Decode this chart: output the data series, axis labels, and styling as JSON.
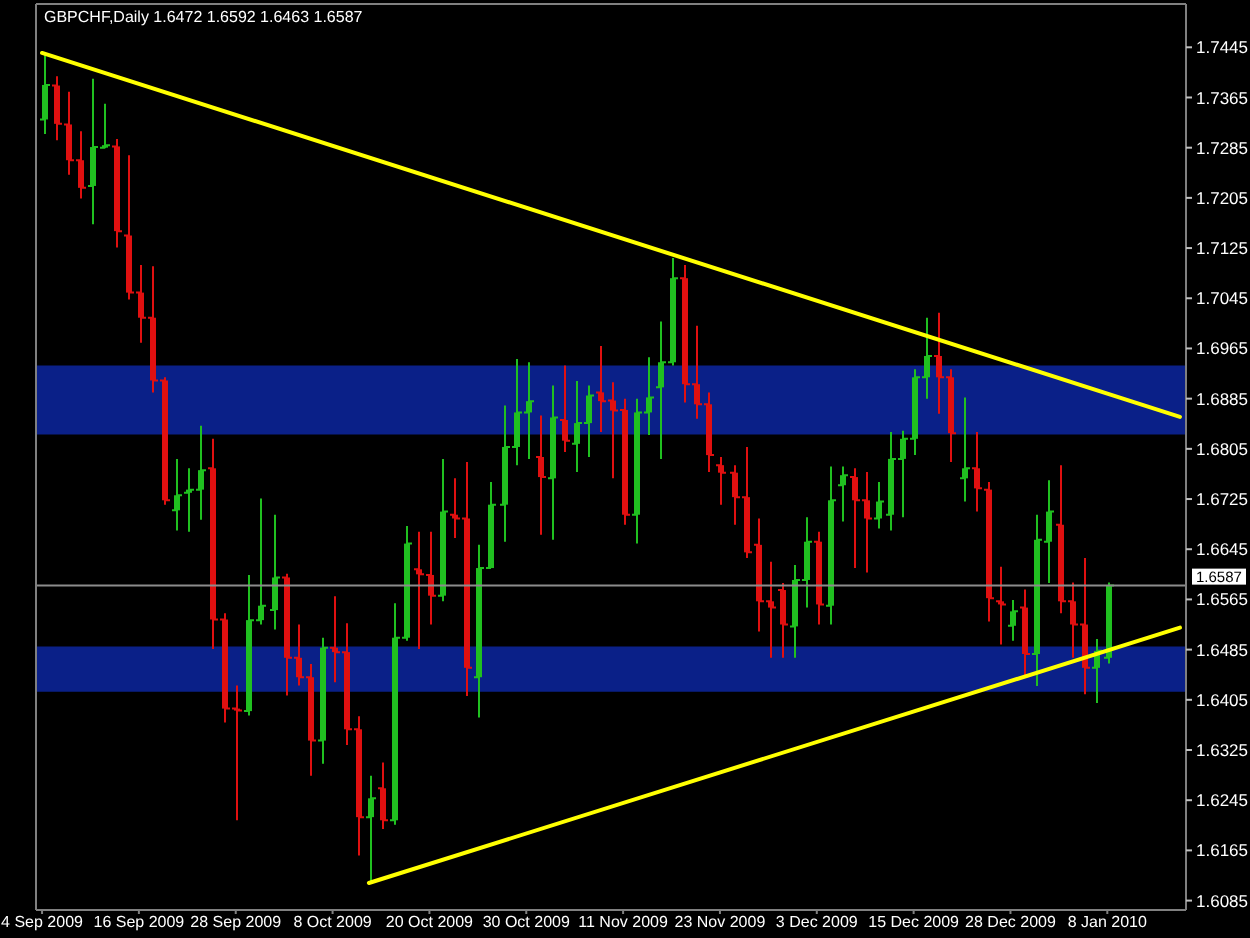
{
  "chart_data": {
    "type": "candlestick",
    "title": "GBPCHF,Daily 1.6472 1.6592 1.6463 1.6587",
    "categories": [
      "4 Sep 2009",
      null,
      null,
      null,
      null,
      null,
      null,
      null,
      "16 Sep 2009",
      null,
      null,
      null,
      null,
      null,
      null,
      null,
      "28 Sep 2009",
      null,
      null,
      null,
      null,
      null,
      null,
      null,
      "8 Oct 2009",
      null,
      null,
      null,
      null,
      null,
      null,
      null,
      "20 Oct 2009",
      null,
      null,
      null,
      null,
      null,
      null,
      null,
      "30 Oct 2009",
      null,
      null,
      null,
      null,
      null,
      null,
      null,
      "11 Nov 2009",
      null,
      null,
      null,
      null,
      null,
      null,
      null,
      "23 Nov 2009",
      null,
      null,
      null,
      null,
      null,
      null,
      null,
      "3 Dec 2009",
      null,
      null,
      null,
      null,
      null,
      null,
      null,
      "15 Dec 2009",
      null,
      null,
      null,
      null,
      null,
      null,
      null,
      "28 Dec 2009",
      null,
      null,
      null,
      null,
      null,
      null,
      null,
      "8 Jan 2010",
      null,
      null,
      null,
      null,
      null,
      null
    ],
    "ohlc": [
      [
        1.733,
        1.7437,
        1.7307,
        1.7385
      ],
      [
        1.7384,
        1.7399,
        1.7297,
        1.7323
      ],
      [
        1.7322,
        1.7374,
        1.7242,
        1.7265
      ],
      [
        1.7265,
        1.7311,
        1.7204,
        1.7221
      ],
      [
        1.7224,
        1.7395,
        1.7163,
        1.7286
      ],
      [
        1.7285,
        1.7355,
        1.7284,
        1.7289
      ],
      [
        1.7287,
        1.7299,
        1.7126,
        1.7152
      ],
      [
        1.7145,
        1.7273,
        1.7043,
        1.7054
      ],
      [
        1.7054,
        1.7098,
        1.6974,
        1.7014
      ],
      [
        1.7014,
        1.7096,
        1.6895,
        1.6914
      ],
      [
        1.6914,
        1.6919,
        1.6716,
        1.6723
      ],
      [
        1.6707,
        1.6789,
        1.6675,
        1.6731
      ],
      [
        1.6735,
        1.6774,
        1.6673,
        1.674
      ],
      [
        1.674,
        1.6842,
        1.6692,
        1.6771
      ],
      [
        1.6774,
        1.6821,
        1.6486,
        1.6533
      ],
      [
        1.6533,
        1.6543,
        1.6369,
        1.6391
      ],
      [
        1.6391,
        1.6428,
        1.6213,
        1.6388
      ],
      [
        1.6387,
        1.6604,
        1.638,
        1.6532
      ],
      [
        1.6532,
        1.6726,
        1.6525,
        1.6555
      ],
      [
        1.6548,
        1.67,
        1.6517,
        1.66
      ],
      [
        1.66,
        1.6606,
        1.6412,
        1.6472
      ],
      [
        1.6472,
        1.6525,
        1.6428,
        1.6441
      ],
      [
        1.6441,
        1.6462,
        1.6284,
        1.634
      ],
      [
        1.634,
        1.6504,
        1.6303,
        1.6488
      ],
      [
        1.6488,
        1.657,
        1.6433,
        1.6481
      ],
      [
        1.6481,
        1.6527,
        1.6333,
        1.6358
      ],
      [
        1.6358,
        1.6379,
        1.6157,
        1.6218
      ],
      [
        1.6218,
        1.6284,
        1.6113,
        1.6248
      ],
      [
        1.6264,
        1.6305,
        1.6199,
        1.6213
      ],
      [
        1.6213,
        1.6559,
        1.6206,
        1.6504
      ],
      [
        1.6504,
        1.6682,
        1.6499,
        1.6654
      ],
      [
        1.6613,
        1.6673,
        1.6486,
        1.6605
      ],
      [
        1.6604,
        1.6673,
        1.6525,
        1.6571
      ],
      [
        1.6571,
        1.6789,
        1.6562,
        1.6705
      ],
      [
        1.67,
        1.6758,
        1.6663,
        1.6694
      ],
      [
        1.6694,
        1.6784,
        1.6411,
        1.6456
      ],
      [
        1.6441,
        1.6652,
        1.6377,
        1.6615
      ],
      [
        1.6615,
        1.6752,
        1.6615,
        1.6716
      ],
      [
        1.6716,
        1.6874,
        1.6657,
        1.6808
      ],
      [
        1.6808,
        1.6948,
        1.6779,
        1.6863
      ],
      [
        1.6863,
        1.6943,
        1.6789,
        1.6881
      ],
      [
        1.6792,
        1.6858,
        1.6668,
        1.676
      ],
      [
        1.6758,
        1.6906,
        1.666,
        1.6855
      ],
      [
        1.6851,
        1.6938,
        1.68,
        1.6818
      ],
      [
        1.6813,
        1.6913,
        1.6768,
        1.6846
      ],
      [
        1.6846,
        1.6906,
        1.6792,
        1.689
      ],
      [
        1.6895,
        1.6969,
        1.6832,
        1.6881
      ],
      [
        1.6882,
        1.6911,
        1.6758,
        1.6866
      ],
      [
        1.6867,
        1.6885,
        1.6684,
        1.67
      ],
      [
        1.67,
        1.6885,
        1.6654,
        1.6863
      ],
      [
        1.6863,
        1.6951,
        1.6827,
        1.6887
      ],
      [
        1.6903,
        1.7008,
        1.6789,
        1.6943
      ],
      [
        1.6943,
        1.7109,
        1.6938,
        1.7077
      ],
      [
        1.7077,
        1.7098,
        1.6879,
        1.6908
      ],
      [
        1.6908,
        1.7001,
        1.6853,
        1.6876
      ],
      [
        1.6876,
        1.6895,
        1.6768,
        1.6795
      ],
      [
        1.6779,
        1.6792,
        1.6716,
        1.6767
      ],
      [
        1.6767,
        1.6779,
        1.6684,
        1.6728
      ],
      [
        1.6728,
        1.6808,
        1.6631,
        1.664
      ],
      [
        1.6652,
        1.6694,
        1.6514,
        1.6562
      ],
      [
        1.6562,
        1.6625,
        1.6472,
        1.6552
      ],
      [
        1.658,
        1.6591,
        1.6472,
        1.6525
      ],
      [
        1.6522,
        1.662,
        1.6472,
        1.6596
      ],
      [
        1.6596,
        1.6696,
        1.6552,
        1.6657
      ],
      [
        1.6657,
        1.6673,
        1.6525,
        1.6557
      ],
      [
        1.6555,
        1.6777,
        1.6525,
        1.6723
      ],
      [
        1.6747,
        1.6777,
        1.6689,
        1.6763
      ],
      [
        1.676,
        1.6774,
        1.6615,
        1.6723
      ],
      [
        1.6723,
        1.6768,
        1.6608,
        1.6694
      ],
      [
        1.6694,
        1.6752,
        1.6678,
        1.6721
      ],
      [
        1.67,
        1.6832,
        1.6675,
        1.6789
      ],
      [
        1.6789,
        1.6834,
        1.6696,
        1.6821
      ],
      [
        1.6821,
        1.6932,
        1.6795,
        1.6919
      ],
      [
        1.6919,
        1.7014,
        1.6885,
        1.6953
      ],
      [
        1.6953,
        1.7022,
        1.6861,
        1.6919
      ],
      [
        1.6919,
        1.6932,
        1.6784,
        1.683
      ],
      [
        1.6758,
        1.6887,
        1.6721,
        1.6774
      ],
      [
        1.6774,
        1.6832,
        1.6705,
        1.6742
      ],
      [
        1.674,
        1.6752,
        1.653,
        1.6567
      ],
      [
        1.6562,
        1.6617,
        1.6493,
        1.6557
      ],
      [
        1.6523,
        1.6564,
        1.6499,
        1.6546
      ],
      [
        1.6552,
        1.6581,
        1.6441,
        1.6478
      ],
      [
        1.6478,
        1.67,
        1.6427,
        1.666
      ],
      [
        1.6657,
        1.6755,
        1.6591,
        1.6705
      ],
      [
        1.6684,
        1.6779,
        1.6543,
        1.6562
      ],
      [
        1.6562,
        1.6592,
        1.6472,
        1.6525
      ],
      [
        1.6525,
        1.6631,
        1.6414,
        1.6456
      ],
      [
        1.6456,
        1.6502,
        1.64,
        1.6483
      ],
      [
        1.6472,
        1.6592,
        1.6463,
        1.6587
      ],
      null,
      null,
      null,
      null,
      null,
      null
    ],
    "colors": [
      "#20c020",
      "#e01010",
      "#e01010",
      "#e01010",
      "#20c020",
      "#20c020",
      "#e01010",
      "#e01010",
      "#e01010",
      "#e01010",
      "#e01010",
      "#20c020",
      "#20c020",
      "#20c020",
      "#e01010",
      "#e01010",
      "#e01010",
      "#20c020",
      "#20c020",
      "#20c020",
      "#e01010",
      "#e01010",
      "#e01010",
      "#20c020",
      "#e01010",
      "#e01010",
      "#e01010",
      "#20c020",
      "#e01010",
      "#20c020",
      "#20c020",
      "#e01010",
      "#e01010",
      "#20c020",
      "#e01010",
      "#e01010",
      "#20c020",
      "#20c020",
      "#20c020",
      "#20c020",
      "#20c020",
      "#e01010",
      "#20c020",
      "#e01010",
      "#20c020",
      "#20c020",
      "#e01010",
      "#e01010",
      "#e01010",
      "#20c020",
      "#20c020",
      "#20c020",
      "#20c020",
      "#e01010",
      "#e01010",
      "#e01010",
      "#e01010",
      "#e01010",
      "#e01010",
      "#e01010",
      "#e01010",
      "#e01010",
      "#20c020",
      "#20c020",
      "#e01010",
      "#20c020",
      "#20c020",
      "#e01010",
      "#e01010",
      "#20c020",
      "#20c020",
      "#20c020",
      "#20c020",
      "#20c020",
      "#e01010",
      "#e01010",
      "#20c020",
      "#e01010",
      "#e01010",
      "#e01010",
      "#20c020",
      "#e01010",
      "#20c020",
      "#20c020",
      "#e01010",
      "#e01010",
      "#e01010",
      "#20c020",
      "#20c020",
      null,
      null,
      null,
      null,
      null,
      null
    ],
    "series": [
      {
        "type": "line",
        "color": "#ffff00",
        "values": [
          1.7436,
          null,
          null,
          null,
          null,
          null,
          null,
          null,
          null,
          null,
          null,
          null,
          null,
          null,
          null,
          null,
          null,
          null,
          null,
          null,
          null,
          null,
          null,
          null,
          null,
          null,
          null,
          null,
          null,
          null,
          null,
          null,
          null,
          null,
          null,
          null,
          null,
          null,
          null,
          null,
          null,
          null,
          null,
          null,
          null,
          null,
          null,
          null,
          null,
          null,
          null,
          null,
          null,
          null,
          null,
          null,
          null,
          null,
          null,
          null,
          null,
          null,
          null,
          null,
          null,
          null,
          null,
          null,
          null,
          null,
          null,
          null,
          null,
          null,
          null,
          null,
          null,
          null,
          null,
          null,
          null,
          null,
          null,
          null,
          null,
          null,
          null,
          null,
          null,
          null,
          null,
          null,
          null,
          null,
          1.6856
        ]
      },
      {
        "type": "line",
        "color": "#ffff00",
        "values": [
          null,
          null,
          null,
          null,
          null,
          null,
          null,
          null,
          null,
          null,
          null,
          null,
          null,
          null,
          null,
          null,
          null,
          null,
          null,
          null,
          null,
          null,
          null,
          null,
          null,
          null,
          null,
          1.6113,
          null,
          null,
          null,
          null,
          null,
          null,
          null,
          null,
          null,
          null,
          null,
          null,
          null,
          null,
          null,
          null,
          null,
          null,
          null,
          null,
          null,
          null,
          null,
          null,
          null,
          null,
          null,
          null,
          null,
          null,
          null,
          null,
          null,
          null,
          null,
          null,
          null,
          null,
          null,
          null,
          null,
          null,
          null,
          null,
          null,
          null,
          null,
          null,
          null,
          null,
          null,
          null,
          null,
          null,
          null,
          null,
          null,
          null,
          null,
          null,
          null,
          null,
          null,
          null,
          null,
          null,
          1.652
        ]
      }
    ],
    "ylim": [
      1.607,
      1.7514
    ],
    "yticks": [
      1.7445,
      1.7365,
      1.7285,
      1.7205,
      1.7125,
      1.7045,
      1.6965,
      1.6885,
      1.6805,
      1.6725,
      1.6645,
      1.6565,
      1.6485,
      1.6405,
      1.6325,
      1.6245,
      1.6165,
      1.6085
    ],
    "ref_lines": [
      {
        "axis": "y",
        "value": 1.6587,
        "label": "1.6587",
        "color": "#8c8c8c"
      }
    ],
    "bands": [
      {
        "axis": "y",
        "from": 1.6828,
        "to": 1.6938,
        "color": "#0a2088"
      },
      {
        "axis": "y",
        "from": 1.6418,
        "to": 1.649,
        "color": "#0a2088"
      }
    ]
  }
}
